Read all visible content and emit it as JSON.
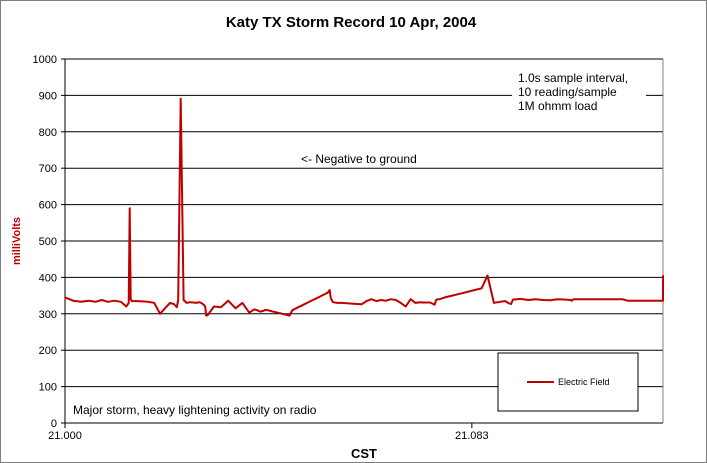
{
  "chart_data": {
    "type": "line",
    "title": "Katy TX Storm Record   10 Apr, 2004",
    "xlabel": "CST",
    "ylabel": "milliVolts",
    "ylim": [
      0,
      1000
    ],
    "yticks": [
      "0",
      "100",
      "200",
      "300",
      "400",
      "500",
      "600",
      "700",
      "800",
      "900",
      "1000"
    ],
    "xlim": [
      21.0,
      21.122
    ],
    "xticks": [
      {
        "value": 21.0,
        "label": "21.000"
      },
      {
        "value": 21.083,
        "label": "21.083"
      }
    ],
    "grid": "horizontal",
    "legend_position": "bottom-right",
    "annotations": {
      "sample_info": [
        "1.0s sample interval,",
        "10 reading/sample",
        "1M ohmm load"
      ],
      "negative_note": "<- Negative to ground",
      "storm_note": "Major storm, heavy lightening activity on radio"
    },
    "colors": {
      "series": "#c00000",
      "plot_bg": "#ffffff",
      "grid": "#000000"
    },
    "series": [
      {
        "name": "Electric Field",
        "x": [
          21.0,
          21.0017,
          21.0033,
          21.0048,
          21.0062,
          21.0075,
          21.0088,
          21.0101,
          21.0114,
          21.0125,
          21.013,
          21.0132,
          21.0134,
          21.0136,
          21.0146,
          21.0158,
          21.017,
          21.0182,
          21.0194,
          21.0206,
          21.0214,
          21.0222,
          21.0228,
          21.0231,
          21.0236,
          21.0242,
          21.0248,
          21.0255,
          21.0262,
          21.0268,
          21.0274,
          21.0278,
          21.0283,
          21.0286,
          21.0288,
          21.0291,
          21.0304,
          21.0318,
          21.0333,
          21.0348,
          21.0362,
          21.0376,
          21.0386,
          21.0392,
          21.0398,
          21.0404,
          21.041,
          21.0416,
          21.0422,
          21.0428,
          21.0434,
          21.044,
          21.0446,
          21.0452,
          21.0458,
          21.0464,
          21.047,
          21.0476,
          21.0482,
          21.0488,
          21.0494,
          21.05,
          21.0506,
          21.0512,
          21.0518,
          21.0524,
          21.053,
          21.0536,
          21.054,
          21.0542,
          21.0544,
          21.0547,
          21.0555,
          21.0565,
          21.0575,
          21.0585,
          21.0595,
          21.0605,
          21.0615,
          21.0625,
          21.0635,
          21.0645,
          21.0655,
          21.0665,
          21.0675,
          21.0685,
          21.0695,
          21.0705,
          21.0715,
          21.0725,
          21.073,
          21.0745,
          21.0754,
          21.0757,
          21.076,
          21.0764,
          21.0775,
          21.079,
          21.0805,
          21.082,
          21.0835,
          21.085,
          21.0862,
          21.0875,
          21.0888,
          21.0898,
          21.0904,
          21.0907,
          21.091,
          21.0914,
          21.093,
          21.0945,
          21.096,
          21.0975,
          21.099,
          21.1005,
          21.1022,
          21.1031,
          21.1034,
          21.1036,
          21.104,
          21.106,
          21.108,
          21.1095,
          21.111,
          21.1125,
          21.1137,
          21.1148,
          21.1158,
          21.1161,
          21.1164,
          21.1168,
          21.1185,
          21.12,
          21.1215,
          21.122,
          21.122
        ],
        "values": [
          345,
          336,
          333,
          336,
          333,
          338,
          333,
          336,
          333,
          320,
          330,
          590,
          340,
          335,
          335,
          334,
          333,
          330,
          300,
          318,
          330,
          327,
          318,
          338,
          891,
          338,
          330,
          332,
          331,
          330,
          332,
          330,
          325,
          320,
          295,
          296,
          320,
          318,
          336,
          315,
          330,
          303,
          312,
          310,
          306,
          308,
          311,
          309,
          307,
          305,
          303,
          301,
          299,
          297,
          295,
          310,
          314,
          318,
          322,
          326,
          330,
          334,
          338,
          342,
          346,
          350,
          354,
          358,
          365,
          345,
          338,
          332,
          330,
          330,
          329,
          328,
          327,
          326,
          335,
          340,
          335,
          338,
          336,
          340,
          338,
          330,
          320,
          340,
          330,
          332,
          331,
          331,
          325,
          338,
          340,
          340,
          345,
          350,
          355,
          360,
          365,
          370,
          405,
          330,
          333,
          335,
          330,
          328,
          327,
          339,
          341,
          338,
          340,
          338,
          337,
          340,
          339,
          338,
          336,
          339,
          340,
          340,
          340,
          340,
          340,
          340,
          340,
          336,
          336,
          336,
          336,
          336,
          336,
          336,
          336,
          336,
          405
        ]
      }
    ]
  }
}
